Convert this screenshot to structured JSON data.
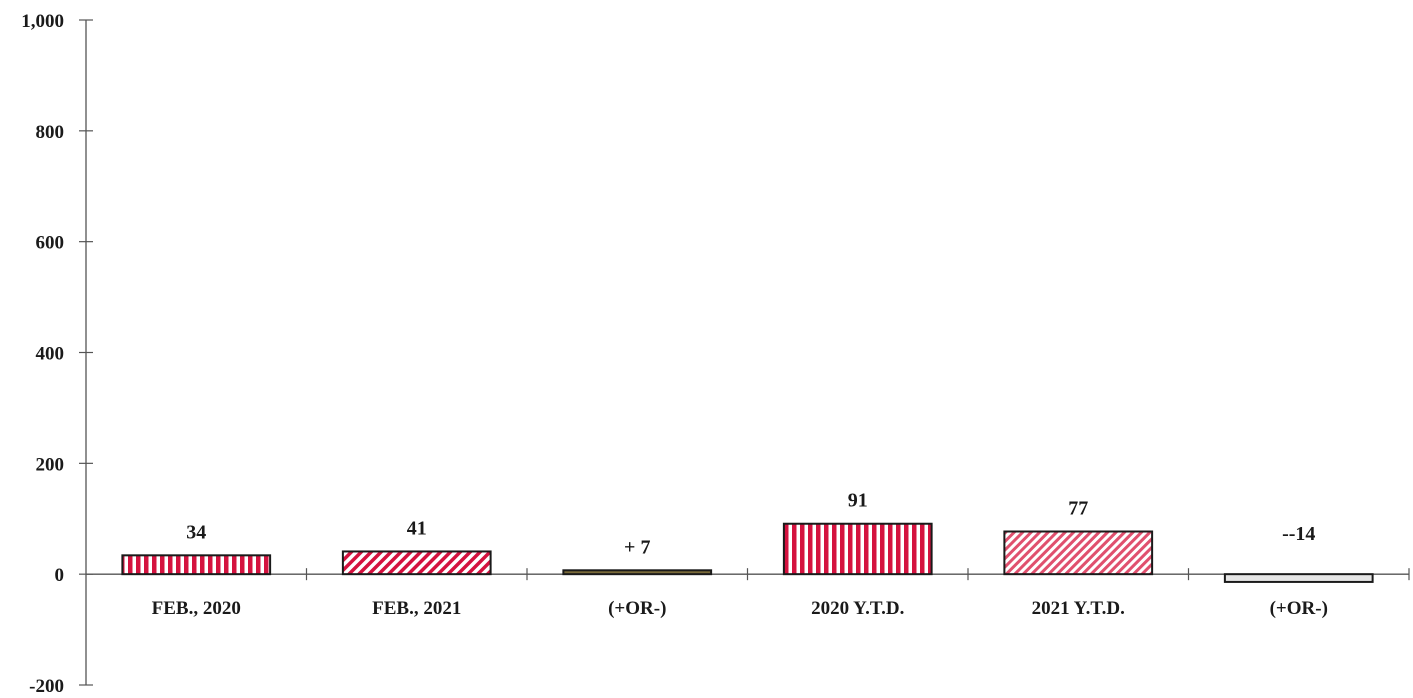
{
  "chart_data": {
    "type": "bar",
    "title": "",
    "xlabel": "",
    "ylabel": "",
    "ylim": [
      -200,
      1000
    ],
    "y_ticks": [
      -200,
      0,
      200,
      400,
      600,
      800,
      1000
    ],
    "y_tick_labels": [
      "-200",
      "0",
      "200",
      "400",
      "600",
      "800",
      "1,000"
    ],
    "grid": false,
    "legend": "none",
    "categories": [
      "FEB., 2020",
      "FEB., 2021",
      "(+OR-)",
      "2020 Y.T.D.",
      "2021 Y.T.D.",
      "(+OR-)"
    ],
    "values": [
      34,
      41,
      7,
      91,
      77,
      -14
    ],
    "data_labels": [
      "34",
      "41",
      "+ 7",
      "91",
      "77",
      "--14"
    ],
    "bar_styles": [
      {
        "pattern": "vertical-stripes",
        "color": "#d4123f"
      },
      {
        "pattern": "diagonal-stripes",
        "color": "#d4123f"
      },
      {
        "pattern": "solid",
        "color": "#7a6a3a"
      },
      {
        "pattern": "vertical-stripes",
        "color": "#d4123f"
      },
      {
        "pattern": "diagonal-fine",
        "color": "#e0506e"
      },
      {
        "pattern": "light",
        "color": "#e6e6e6"
      }
    ]
  }
}
